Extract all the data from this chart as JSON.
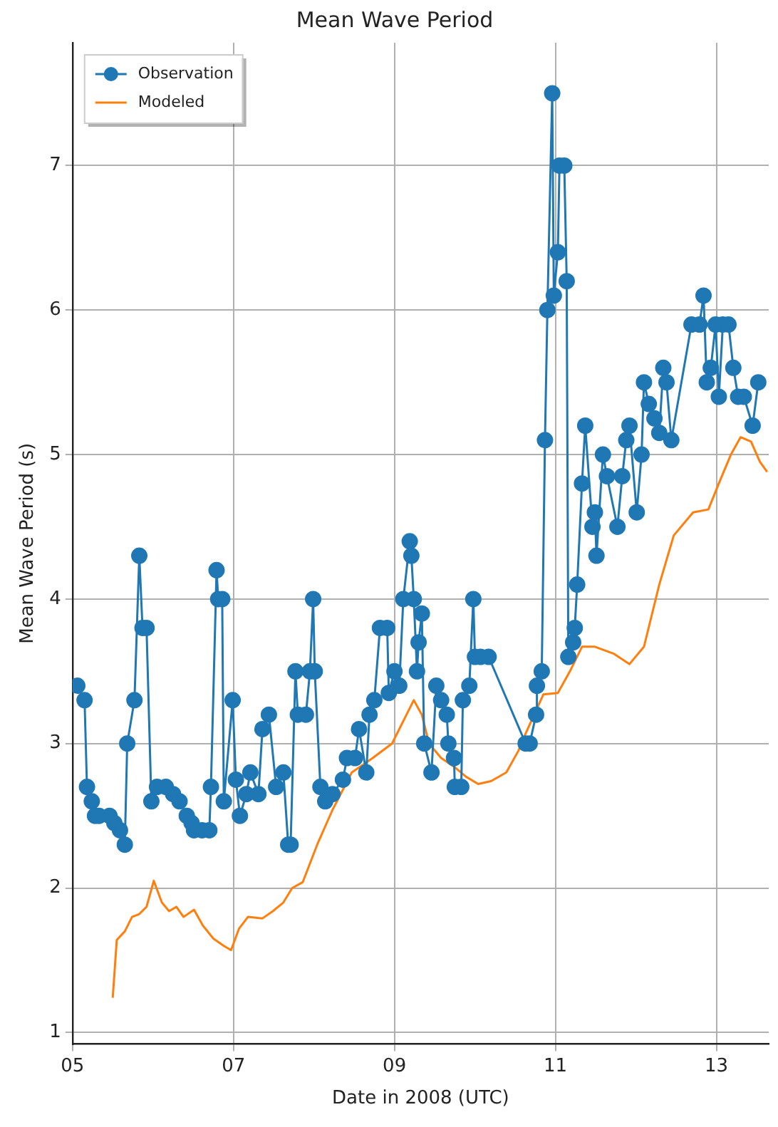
{
  "chart_data": {
    "type": "line",
    "title": "Mean Wave Period",
    "xlabel": "Date in 2008 (UTC)",
    "ylabel": "Mean Wave Period (s)",
    "xlim": [
      5,
      13.65
    ],
    "xticks": [
      {
        "value": 5,
        "label": "05"
      },
      {
        "value": 7,
        "label": "07"
      },
      {
        "value": 9,
        "label": "09"
      },
      {
        "value": 11,
        "label": "11"
      },
      {
        "value": 13,
        "label": "13"
      }
    ],
    "ylim": [
      0.92,
      7.85
    ],
    "yticks": [
      1,
      2,
      3,
      4,
      5,
      6,
      7
    ],
    "grid": true,
    "legend": "top left",
    "series": [
      {
        "name": "Observation",
        "color": "#1f77b4",
        "marker": "circle",
        "x": [
          5.06,
          5.15,
          5.18,
          5.24,
          5.28,
          5.33,
          5.46,
          5.52,
          5.59,
          5.65,
          5.68,
          5.77,
          5.83,
          5.87,
          5.92,
          5.98,
          6.05,
          6.16,
          6.25,
          6.33,
          6.42,
          6.48,
          6.51,
          6.61,
          6.7,
          6.72,
          6.79,
          6.81,
          6.86,
          6.88,
          6.99,
          7.03,
          7.08,
          7.16,
          7.21,
          7.31,
          7.36,
          7.44,
          7.53,
          7.62,
          7.68,
          7.71,
          7.77,
          7.8,
          7.9,
          7.95,
          7.99,
          8.01,
          8.08,
          8.14,
          8.23,
          8.36,
          8.41,
          8.51,
          8.56,
          8.65,
          8.69,
          8.75,
          8.82,
          8.91,
          8.93,
          9.0,
          9.06,
          9.11,
          9.19,
          9.21,
          9.24,
          9.28,
          9.3,
          9.34,
          9.37,
          9.46,
          9.52,
          9.58,
          9.65,
          9.67,
          9.74,
          9.75,
          9.83,
          9.85,
          9.93,
          9.98,
          10.0,
          10.07,
          10.17,
          10.63,
          10.68,
          10.76,
          10.77,
          10.83,
          10.87,
          10.9,
          10.96,
          10.98,
          11.03,
          11.05,
          11.11,
          11.14,
          11.16,
          11.22,
          11.24,
          11.27,
          11.33,
          11.37,
          11.46,
          11.49,
          11.51,
          11.59,
          11.64,
          11.77,
          11.83,
          11.88,
          11.92,
          12.01,
          12.07,
          12.1,
          12.16,
          12.23,
          12.29,
          12.34,
          12.38,
          12.44,
          12.69,
          12.79,
          12.84,
          12.88,
          12.93,
          12.99,
          13.03,
          13.08,
          13.15,
          13.21,
          13.27,
          13.34,
          13.45,
          13.52
        ],
        "values": [
          3.4,
          3.3,
          2.7,
          2.6,
          2.5,
          2.5,
          2.5,
          2.45,
          2.4,
          2.3,
          3.0,
          3.3,
          4.3,
          3.8,
          3.8,
          2.6,
          2.7,
          2.7,
          2.65,
          2.6,
          2.5,
          2.45,
          2.4,
          2.4,
          2.4,
          2.7,
          4.2,
          4.0,
          4.0,
          2.6,
          3.3,
          2.75,
          2.5,
          2.65,
          2.8,
          2.65,
          3.1,
          3.2,
          2.7,
          2.8,
          2.3,
          2.3,
          3.5,
          3.2,
          3.2,
          3.5,
          4.0,
          3.5,
          2.7,
          2.6,
          2.65,
          2.75,
          2.9,
          2.9,
          3.1,
          2.8,
          3.2,
          3.3,
          3.8,
          3.8,
          3.35,
          3.5,
          3.4,
          4.0,
          4.4,
          4.3,
          4.0,
          3.5,
          3.7,
          3.9,
          3.0,
          2.8,
          3.4,
          3.3,
          3.2,
          3.0,
          2.9,
          2.7,
          2.7,
          3.3,
          3.4,
          4.0,
          3.6,
          3.6,
          3.6,
          3.0,
          3.0,
          3.2,
          3.4,
          3.5,
          5.1,
          6.0,
          7.5,
          6.1,
          6.4,
          7.0,
          7.0,
          6.2,
          3.6,
          3.7,
          3.8,
          4.1,
          4.8,
          5.2,
          4.5,
          4.6,
          4.3,
          5.0,
          4.85,
          4.5,
          4.85,
          5.1,
          5.2,
          4.6,
          5.0,
          5.5,
          5.35,
          5.25,
          5.15,
          5.6,
          5.5,
          5.1,
          5.9,
          5.9,
          6.1,
          5.5,
          5.6,
          5.9,
          5.4,
          5.9,
          5.9,
          5.6,
          5.4,
          5.4,
          5.2,
          5.5
        ]
      },
      {
        "name": "Modeled",
        "color": "#ff7f0e",
        "marker": "none",
        "x": [
          5.5,
          5.55,
          5.65,
          5.74,
          5.83,
          5.92,
          6.01,
          6.11,
          6.2,
          6.29,
          6.38,
          6.51,
          6.62,
          6.75,
          6.88,
          6.97,
          7.07,
          7.18,
          7.36,
          7.49,
          7.62,
          7.73,
          7.86,
          8.04,
          8.23,
          8.47,
          8.73,
          8.97,
          9.15,
          9.24,
          9.34,
          9.43,
          9.58,
          9.74,
          9.89,
          10.04,
          10.2,
          10.39,
          10.54,
          10.63,
          10.85,
          11.03,
          11.18,
          11.33,
          11.49,
          11.73,
          11.92,
          12.1,
          12.29,
          12.47,
          12.71,
          12.9,
          13.03,
          13.18,
          13.3,
          13.43,
          13.54,
          13.63
        ],
        "values": [
          1.24,
          1.64,
          1.7,
          1.8,
          1.82,
          1.87,
          2.05,
          1.9,
          1.84,
          1.87,
          1.8,
          1.85,
          1.74,
          1.65,
          1.6,
          1.57,
          1.72,
          1.8,
          1.79,
          1.84,
          1.9,
          2.0,
          2.04,
          2.3,
          2.54,
          2.8,
          2.9,
          3.0,
          3.2,
          3.3,
          3.2,
          3.0,
          2.9,
          2.84,
          2.77,
          2.72,
          2.74,
          2.8,
          2.95,
          3.07,
          3.34,
          3.35,
          3.5,
          3.67,
          3.67,
          3.62,
          3.55,
          3.67,
          4.1,
          4.44,
          4.6,
          4.62,
          4.8,
          5.0,
          5.12,
          5.09,
          4.95,
          4.88
        ]
      }
    ]
  }
}
